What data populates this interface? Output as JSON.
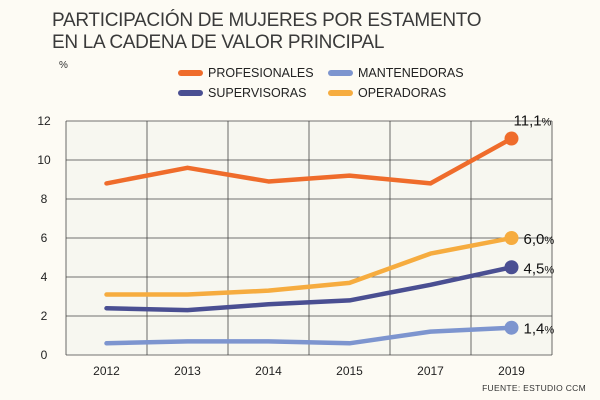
{
  "title_lines": [
    "PARTICIPACIÓN DE MUJERES POR ESTAMENTO",
    "EN LA CADENA DE VALOR PRINCIPAL"
  ],
  "y_unit": "%",
  "source": "FUENTE: ESTUDIO CCM",
  "colors": {
    "profesionales": "#ef6c2b",
    "supervisoras": "#4a4f92",
    "mantenedoras": "#7d95cf",
    "operadoras": "#f6ac3f",
    "plot_bg": "#f7f7f0",
    "grid": "#444444"
  },
  "chart_data": {
    "type": "line",
    "title": "PARTICIPACIÓN DE MUJERES POR ESTAMENTO EN LA CADENA DE VALOR PRINCIPAL",
    "xlabel": "",
    "ylabel": "%",
    "categories": [
      "2012",
      "2013",
      "2014",
      "2015",
      "2017",
      "2019"
    ],
    "ylim": [
      0,
      12
    ],
    "yticks": [
      "0",
      "2",
      "4",
      "6",
      "8",
      "10",
      "12"
    ],
    "legend_position": "top",
    "series": [
      {
        "name": "PROFESIONALES",
        "key": "profesionales",
        "values": [
          8.8,
          9.6,
          8.9,
          9.2,
          8.8,
          11.1
        ],
        "end_label": "11,1",
        "end_suffix": "%"
      },
      {
        "name": "SUPERVISORAS",
        "key": "supervisoras",
        "values": [
          2.4,
          2.3,
          2.6,
          2.8,
          3.6,
          4.5
        ],
        "end_label": "4,5",
        "end_suffix": "%"
      },
      {
        "name": "MANTENEDORAS",
        "key": "mantenedoras",
        "values": [
          0.6,
          0.7,
          0.7,
          0.6,
          1.2,
          1.4
        ],
        "end_label": "1,4",
        "end_suffix": "%"
      },
      {
        "name": "OPERADORAS",
        "key": "operadoras",
        "values": [
          3.1,
          3.1,
          3.3,
          3.7,
          5.2,
          6.0
        ],
        "end_label": "6,0",
        "end_suffix": "%"
      }
    ]
  }
}
